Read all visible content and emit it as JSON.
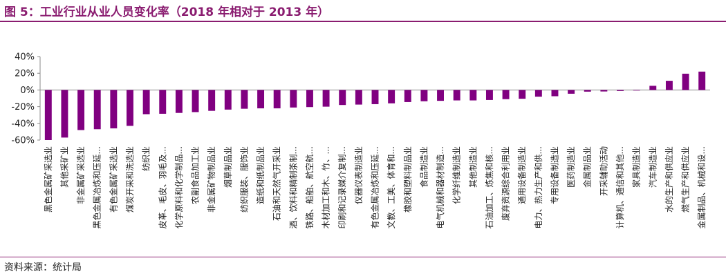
{
  "header": {
    "title": "图 5：工业行业从业人员变化率（2018 年相对于 2013 年）"
  },
  "footer": {
    "source": "资料来源：统计局"
  },
  "chart_data": {
    "type": "bar",
    "ylim": [
      -60,
      40
    ],
    "yticks": [
      40,
      20,
      0,
      -20,
      -40,
      -60
    ],
    "ytick_labels": [
      "40%",
      "20%",
      "0%",
      "-20%",
      "-40%",
      "-60%"
    ],
    "grid": false,
    "bar_color": "#800080",
    "categories": [
      "黑色金属矿采选业",
      "其他采矿业",
      "非金属矿采选业",
      "黑色金属冶炼和压延...",
      "有色金属矿采选业",
      "煤炭开采和洗选业",
      "纺织业",
      "皮革、毛皮、羽毛及...",
      "化学原料和化学制品...",
      "农副食品加工业",
      "非金属矿物制品业",
      "烟草制品业",
      "纺织服装、服饰业",
      "造纸和纸制品业",
      "石油和天然气开采业",
      "酒、饮料和精制茶制...",
      "铁路、船舶、航空航...",
      "木材加工和木、竹、...",
      "印刷和记录媒介复制...",
      "仪器仪表制造业",
      "有色金属冶炼和压延...",
      "文教、工美、体育和...",
      "橡胶和塑料制品业",
      "食品制造业",
      "电气机械和器材制造...",
      "化学纤维制造业",
      "其他制造业",
      "石油加工、炼焦和核...",
      "废弃资源综合利用业",
      "通用设备制造业",
      "电力、热力生产和供...",
      "专用设备制造业",
      "医药制造业",
      "金属制品业",
      "开采辅助活动",
      "计算机、通信和其他...",
      "家具制造业",
      "汽车制造业",
      "水的生产和供应业",
      "燃气生产和供应业",
      "金属制品、机械和设..."
    ],
    "values": [
      -60,
      -57,
      -48,
      -47,
      -46,
      -43,
      -29,
      -28.5,
      -27.5,
      -26.5,
      -25,
      -23.5,
      -22.5,
      -22,
      -22,
      -21,
      -20.5,
      -20,
      -18,
      -17.5,
      -17,
      -16,
      -14.5,
      -13.5,
      -13,
      -12.5,
      -12.5,
      -12,
      -11,
      -10.5,
      -8,
      -7.5,
      -4.5,
      -2,
      -1.8,
      -1.2,
      -0.5,
      5,
      11,
      19.5,
      22
    ]
  }
}
